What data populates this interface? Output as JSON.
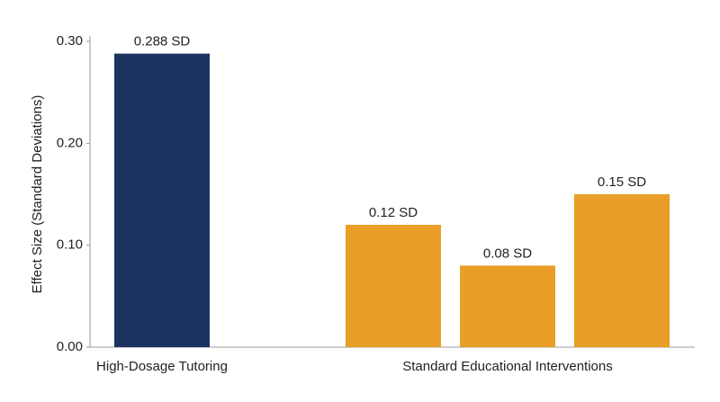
{
  "chart_data": {
    "type": "bar",
    "y_label": "Effect Size (Standard Deviations)",
    "categories": [
      "High-Dosage Tutoring",
      null,
      "Standard Educational Interventions",
      null
    ],
    "values": [
      0.288,
      0.12,
      0.08,
      0.15
    ],
    "value_labels": [
      "0.288 SD",
      "0.12 SD",
      "0.08 SD",
      "0.15 SD"
    ],
    "colors": [
      "#1d3461",
      "#e89e27",
      "#e89e27",
      "#e89e27"
    ],
    "ylim": [
      0,
      0.3
    ],
    "yticks": [
      {
        "value": 0,
        "label": "0.00"
      },
      {
        "value": 0.1,
        "label": "0.10"
      },
      {
        "value": 0.2,
        "label": "0.20"
      },
      {
        "value": 0.3,
        "label": "0.30"
      }
    ],
    "grid": false
  }
}
